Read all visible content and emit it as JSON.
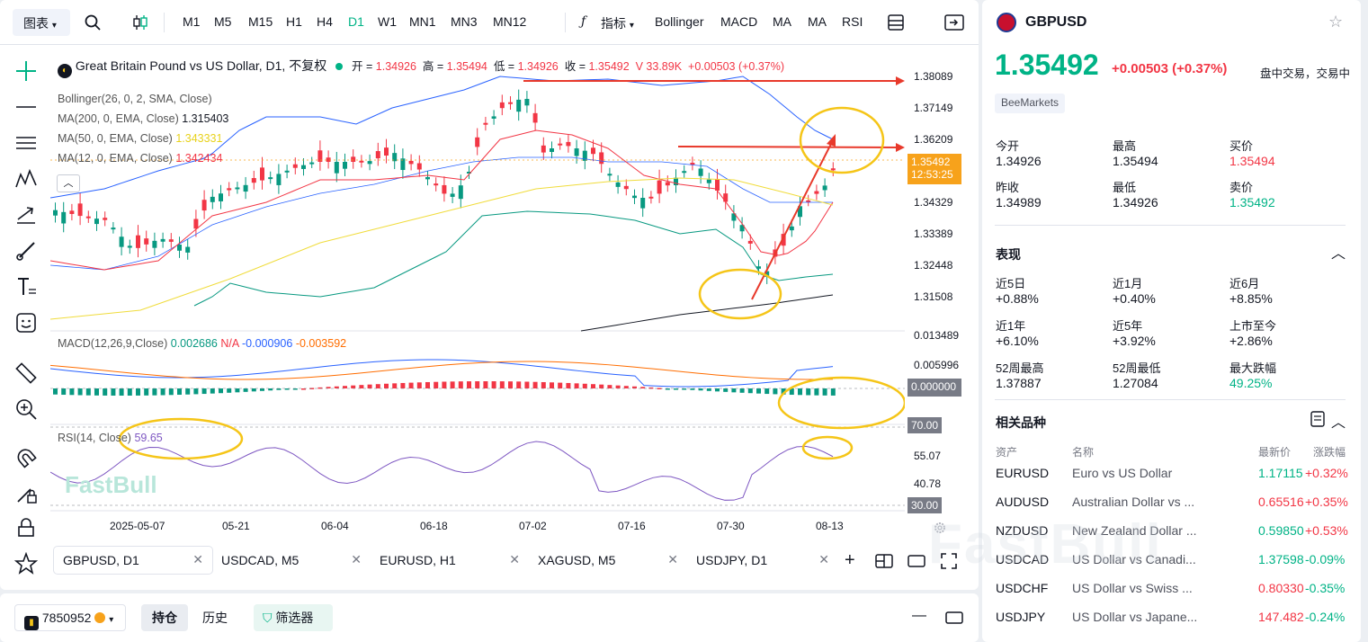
{
  "toolbar": {
    "chart_type": "图表",
    "timeframes": [
      "M1",
      "M5",
      "M15",
      "H1",
      "H4",
      "D1",
      "W1",
      "MN1",
      "MN3",
      "MN12"
    ],
    "active_tf": "D1",
    "indicator_label": "指标",
    "indicators": [
      "Bollinger",
      "MACD",
      "MA",
      "MA",
      "RSI"
    ]
  },
  "legend": {
    "title": "Great Britain Pound vs US Dollar, D1, 不复权",
    "open_label": "开 =",
    "open": "1.34926",
    "high_label": "高 =",
    "high": "1.35494",
    "low_label": "低 =",
    "low": "1.34926",
    "close_label": "收 =",
    "close": "1.35492",
    "vol": "V 33.89K",
    "change": "+0.00503 (+0.37%)",
    "bollinger": "Bollinger(26, 0, 2, SMA, Close)",
    "ma200": "MA(200, 0, EMA, Close)",
    "ma200_val": "1.315403",
    "ma50": "MA(50, 0, EMA, Close)",
    "ma50_val": "1.343331",
    "ma12": "MA(12, 0, EMA, Close)",
    "ma12_val": "1.342434",
    "macd": "MACD(12,26,9,Close)",
    "macd_v1": "0.002686",
    "macd_v2": "N/A",
    "macd_v3": "-0.000906",
    "macd_v4": "-0.003592",
    "rsi": "RSI(14, Close)",
    "rsi_val": "59.65"
  },
  "price_axis": [
    "1.38089",
    "1.37149",
    "1.36209",
    "1.34329",
    "1.33389",
    "1.32448",
    "1.31508"
  ],
  "price_tag": {
    "price": "1.35492",
    "countdown": "12:53:25"
  },
  "macd_axis": [
    "0.013489",
    "0.005996"
  ],
  "macd_tag": "0.000000",
  "rsi_axis": [
    "55.07",
    "40.78"
  ],
  "rsi_tag_top": "70.00",
  "rsi_tag_bottom": "30.00",
  "x_axis": [
    "2025-05-07",
    "05-21",
    "06-04",
    "06-18",
    "07-02",
    "07-16",
    "07-30",
    "08-13"
  ],
  "watermark": "FastBull",
  "tabs": [
    {
      "label": "GBPUSD, D1"
    },
    {
      "label": "USDCAD, M5"
    },
    {
      "label": "EURUSD, H1"
    },
    {
      "label": "XAGUSD, M5"
    },
    {
      "label": "USDJPY, D1"
    }
  ],
  "account": {
    "id": "7850952",
    "tabs": [
      "持仓",
      "历史"
    ],
    "filter": "筛选器"
  },
  "symbol": {
    "name": "GBPUSD",
    "price": "1.35492",
    "change": "+0.00503 (+0.37%)",
    "status": "盘中交易，交易中",
    "broker": "BeeMarkets"
  },
  "stats": [
    {
      "label": "今开",
      "value": "1.34926"
    },
    {
      "label": "最高",
      "value": "1.35494"
    },
    {
      "label": "买价",
      "value": "1.35494"
    },
    {
      "label": "昨收",
      "value": "1.34989"
    },
    {
      "label": "最低",
      "value": "1.34926"
    },
    {
      "label": "卖价",
      "value": "1.35492"
    }
  ],
  "performance": {
    "title": "表现",
    "items": [
      {
        "label": "近5日",
        "value": "+0.88%"
      },
      {
        "label": "近1月",
        "value": "+0.40%"
      },
      {
        "label": "近6月",
        "value": "+8.85%"
      },
      {
        "label": "近1年",
        "value": "+6.10%"
      },
      {
        "label": "近5年",
        "value": "+3.92%"
      },
      {
        "label": "上市至今",
        "value": "+2.86%"
      },
      {
        "label": "52周最高",
        "value": "1.37887"
      },
      {
        "label": "52周最低",
        "value": "1.27084"
      },
      {
        "label": "最大跌幅",
        "value": "49.25%"
      }
    ]
  },
  "related": {
    "title": "相关品种",
    "headers": [
      "资产",
      "名称",
      "最新价",
      "涨跌幅"
    ],
    "rows": [
      {
        "sym": "EURUSD",
        "name": "Euro vs US Dollar",
        "price": "1.17115",
        "chg": "+0.32%",
        "pc": "#00b386"
      },
      {
        "sym": "AUDUSD",
        "name": "Australian Dollar vs ...",
        "price": "0.65516",
        "chg": "+0.35%",
        "pc": "#f23645"
      },
      {
        "sym": "NZDUSD",
        "name": "New Zealand Dollar ...",
        "price": "0.59850",
        "chg": "+0.53%",
        "pc": "#00b386"
      },
      {
        "sym": "USDCAD",
        "name": "US Dollar vs Canadi...",
        "price": "1.37598",
        "chg": "-0.09%",
        "pc": "#00b386"
      },
      {
        "sym": "USDCHF",
        "name": "US Dollar vs Swiss ...",
        "price": "0.80330",
        "chg": "-0.35%",
        "pc": "#f23645"
      },
      {
        "sym": "USDJPY",
        "name": "US Dollar vs Japane...",
        "price": "147.482",
        "chg": "-0.24%",
        "pc": "#f23645"
      }
    ]
  },
  "colors": {
    "up": "#089981",
    "down": "#f23645",
    "accent": "#00b386"
  }
}
